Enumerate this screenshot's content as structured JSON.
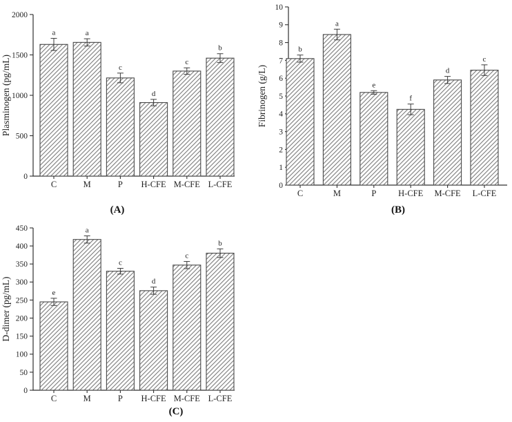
{
  "figure": {
    "background": "#ffffff"
  },
  "colors": {
    "axis": "#2e2e2e",
    "tick_text": "#1f1f1f",
    "bar_outline": "#474747",
    "bar_fill": "#ffffff",
    "hatch_line": "#6e6e6e",
    "error_bar": "#3a3a3a",
    "letter_text": "#1f1f1f"
  },
  "chart_data": [
    {
      "panel_label": "(A)",
      "type": "bar",
      "title": "",
      "xlabel": "",
      "ylabel": "Plasminogen (pg/mL)",
      "categories": [
        "C",
        "M",
        "P",
        "H-CFE",
        "M-CFE",
        "L-CFE"
      ],
      "values": [
        1630,
        1655,
        1215,
        910,
        1300,
        1460
      ],
      "errors": [
        75,
        45,
        60,
        40,
        40,
        55
      ],
      "sig_letters": [
        "a",
        "a",
        "c",
        "d",
        "c",
        "b"
      ],
      "ylim": [
        0,
        2000
      ],
      "ytick_step": 500,
      "grid": false,
      "legend": "none",
      "bar_style": "diagonal-hatch"
    },
    {
      "panel_label": "(B)",
      "type": "bar",
      "title": "",
      "xlabel": "",
      "ylabel": "Fibrinogen (g/L)",
      "categories": [
        "C",
        "M",
        "P",
        "H-CFE",
        "M-CFE",
        "L-CFE"
      ],
      "values": [
        7.1,
        8.45,
        5.2,
        4.25,
        5.9,
        6.45
      ],
      "errors": [
        0.2,
        0.3,
        0.1,
        0.3,
        0.2,
        0.3
      ],
      "sig_letters": [
        "b",
        "a",
        "e",
        "f",
        "d",
        "c"
      ],
      "ylim": [
        0,
        10
      ],
      "ytick_step": 1,
      "grid": false,
      "legend": "none",
      "bar_style": "diagonal-hatch"
    },
    {
      "panel_label": "(C)",
      "type": "bar",
      "title": "",
      "xlabel": "",
      "ylabel": "D-dimer (pg/mL)",
      "categories": [
        "C",
        "M",
        "P",
        "H-CFE",
        "M-CFE",
        "L-CFE"
      ],
      "values": [
        245,
        418,
        330,
        276,
        347,
        380
      ],
      "errors": [
        10,
        10,
        8,
        10,
        10,
        12
      ],
      "sig_letters": [
        "e",
        "a",
        "c",
        "d",
        "c",
        "b"
      ],
      "ylim": [
        0,
        450
      ],
      "ytick_step": 50,
      "grid": false,
      "legend": "none",
      "bar_style": "diagonal-hatch"
    }
  ]
}
